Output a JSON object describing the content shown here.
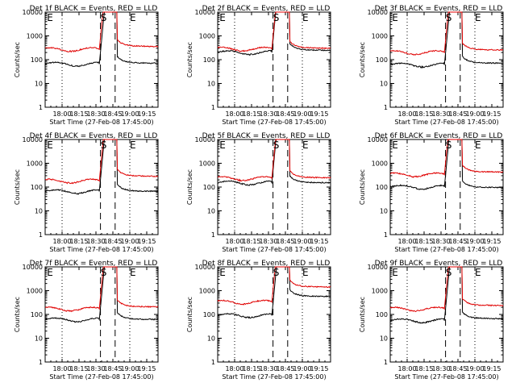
{
  "colors": {
    "events": "#000000",
    "lld": "#e00000",
    "axes": "#000000"
  },
  "shared": {
    "ylabel": "Counts/sec",
    "xlabel": "Start Time (27-Feb-08 17:45:00)",
    "yticks": [
      "1",
      "10",
      "100",
      "1000",
      "10000"
    ],
    "xticks": [
      "18:00",
      "18:15",
      "18:30",
      "18:45",
      "19:00",
      "19:15"
    ],
    "markers": [
      "E",
      "S",
      "E"
    ]
  },
  "chart_data": [
    {
      "type": "line",
      "title": "Det 1f BLACK = Events, RED = LLD",
      "yscale": "log",
      "ylim": [
        1,
        10000
      ],
      "xlim": [
        "17:45",
        "19:25"
      ],
      "x_ticks": [
        "18:00",
        "18:15",
        "18:30",
        "18:45",
        "19:00",
        "19:15"
      ],
      "dotted_at": [
        "18:00",
        "19:00"
      ],
      "dashed_at": [
        "18:34",
        "18:47"
      ],
      "series": [
        {
          "name": "BLACK = Events",
          "color": "#000000",
          "base": 65,
          "after": 75
        },
        {
          "name": "RED = LLD",
          "color": "#e00000",
          "base": 270,
          "after": 380
        }
      ]
    },
    {
      "type": "line",
      "title": "Det 2f BLACK = Events, RED = LLD",
      "yscale": "log",
      "ylim": [
        1,
        10000
      ],
      "xlim": [
        "17:45",
        "19:25"
      ],
      "x_ticks": [
        "18:00",
        "18:15",
        "18:30",
        "18:45",
        "19:00",
        "19:15"
      ],
      "dotted_at": [
        "18:00",
        "19:00"
      ],
      "dashed_at": [
        "18:34",
        "18:47"
      ],
      "series": [
        {
          "name": "BLACK = Events",
          "color": "#000000",
          "base": 200,
          "after": 260
        },
        {
          "name": "RED = LLD",
          "color": "#e00000",
          "base": 280,
          "after": 320
        }
      ]
    },
    {
      "type": "line",
      "title": "Det 3f BLACK = Events, RED = LLD",
      "yscale": "log",
      "ylim": [
        1,
        10000
      ],
      "xlim": [
        "17:45",
        "19:25"
      ],
      "x_ticks": [
        "18:00",
        "18:15",
        "18:30",
        "18:45",
        "19:00",
        "19:15"
      ],
      "dotted_at": [
        "18:00",
        "19:00"
      ],
      "dashed_at": [
        "18:34",
        "18:47"
      ],
      "series": [
        {
          "name": "BLACK = Events",
          "color": "#000000",
          "base": 60,
          "after": 75
        },
        {
          "name": "RED = LLD",
          "color": "#e00000",
          "base": 200,
          "after": 270
        }
      ]
    },
    {
      "type": "line",
      "title": "Det 4f BLACK = Events, RED = LLD",
      "yscale": "log",
      "ylim": [
        1,
        10000
      ],
      "xlim": [
        "17:45",
        "19:25"
      ],
      "x_ticks": [
        "18:00",
        "18:15",
        "18:30",
        "18:45",
        "19:00",
        "19:15"
      ],
      "dotted_at": [
        "18:00",
        "19:00"
      ],
      "dashed_at": [
        "18:34",
        "18:47"
      ],
      "series": [
        {
          "name": "BLACK = Events",
          "color": "#000000",
          "base": 65,
          "after": 70
        },
        {
          "name": "RED = LLD",
          "color": "#e00000",
          "base": 180,
          "after": 300
        }
      ]
    },
    {
      "type": "line",
      "title": "Det 5f BLACK = Events, RED = LLD",
      "yscale": "log",
      "ylim": [
        1,
        10000
      ],
      "xlim": [
        "17:45",
        "19:25"
      ],
      "x_ticks": [
        "18:00",
        "18:15",
        "18:30",
        "18:45",
        "19:00",
        "19:15"
      ],
      "dotted_at": [
        "18:00",
        "19:00"
      ],
      "dashed_at": [
        "18:34",
        "18:47"
      ],
      "series": [
        {
          "name": "BLACK = Events",
          "color": "#000000",
          "base": 150,
          "after": 160
        },
        {
          "name": "RED = LLD",
          "color": "#e00000",
          "base": 230,
          "after": 260
        }
      ]
    },
    {
      "type": "line",
      "title": "Det 6f BLACK = Events, RED = LLD",
      "yscale": "log",
      "ylim": [
        1,
        10000
      ],
      "xlim": [
        "17:45",
        "19:25"
      ],
      "x_ticks": [
        "18:00",
        "18:15",
        "18:30",
        "18:45",
        "19:00",
        "19:15"
      ],
      "dotted_at": [
        "18:00",
        "19:00"
      ],
      "dashed_at": [
        "18:34",
        "18:47"
      ],
      "series": [
        {
          "name": "BLACK = Events",
          "color": "#000000",
          "base": 100,
          "after": 100
        },
        {
          "name": "RED = LLD",
          "color": "#e00000",
          "base": 330,
          "after": 450
        }
      ]
    },
    {
      "type": "line",
      "title": "Det 7f BLACK = Events, RED = LLD",
      "yscale": "log",
      "ylim": [
        1,
        10000
      ],
      "xlim": [
        "17:45",
        "19:25"
      ],
      "x_ticks": [
        "18:00",
        "18:15",
        "18:30",
        "18:45",
        "19:00",
        "19:15"
      ],
      "dotted_at": [
        "18:00",
        "19:00"
      ],
      "dashed_at": [
        "18:34",
        "18:47"
      ],
      "series": [
        {
          "name": "BLACK = Events",
          "color": "#000000",
          "base": 60,
          "after": 65
        },
        {
          "name": "RED = LLD",
          "color": "#e00000",
          "base": 170,
          "after": 220
        }
      ]
    },
    {
      "type": "line",
      "title": "Det 8f BLACK = Events, RED = LLD",
      "yscale": "log",
      "ylim": [
        1,
        10000
      ],
      "xlim": [
        "17:45",
        "19:25"
      ],
      "x_ticks": [
        "18:00",
        "18:15",
        "18:30",
        "18:45",
        "19:00",
        "19:15"
      ],
      "dotted_at": [
        "18:00",
        "19:00"
      ],
      "dashed_at": [
        "18:34",
        "18:47"
      ],
      "series": [
        {
          "name": "BLACK = Events",
          "color": "#000000",
          "base": 90,
          "after": 600
        },
        {
          "name": "RED = LLD",
          "color": "#e00000",
          "base": 330,
          "after": 1500
        }
      ]
    },
    {
      "type": "line",
      "title": "Det 9f BLACK = Events, RED = LLD",
      "yscale": "log",
      "ylim": [
        1,
        10000
      ],
      "xlim": [
        "17:45",
        "19:25"
      ],
      "x_ticks": [
        "18:00",
        "18:15",
        "18:30",
        "18:45",
        "19:00",
        "19:15"
      ],
      "dotted_at": [
        "18:00",
        "19:00"
      ],
      "dashed_at": [
        "18:34",
        "18:47"
      ],
      "series": [
        {
          "name": "BLACK = Events",
          "color": "#000000",
          "base": 55,
          "after": 70
        },
        {
          "name": "RED = LLD",
          "color": "#e00000",
          "base": 170,
          "after": 250
        }
      ]
    }
  ]
}
